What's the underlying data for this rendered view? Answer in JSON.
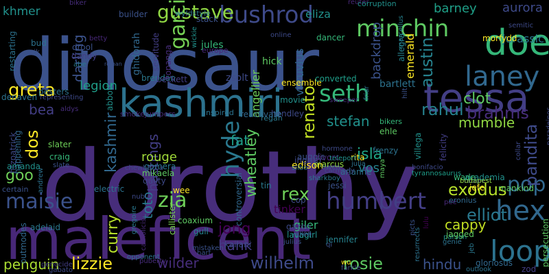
{
  "words": [
    {
      "text": "dorothy",
      "color": "#472d7b",
      "vertical": false
    },
    {
      "text": "dinosaur",
      "color": "#3b528b",
      "vertical": false
    },
    {
      "text": "maleficent",
      "color": "#482878",
      "vertical": false
    },
    {
      "text": "kashmiri",
      "color": "#2c728e",
      "vertical": false
    },
    {
      "text": "tessa",
      "color": "#433e85",
      "vertical": false
    },
    {
      "text": "doe",
      "color": "#35b779",
      "vertical": false
    },
    {
      "text": "laney",
      "color": "#31688e",
      "vertical": false
    },
    {
      "text": "hex",
      "color": "#31688e",
      "vertical": false
    },
    {
      "text": "loop",
      "color": "#2c728e",
      "vertical": false
    },
    {
      "text": "minchin",
      "color": "#5ec962",
      "vertical": false
    },
    {
      "text": "bushrod",
      "color": "#3e4a89",
      "vertical": false
    },
    {
      "text": "gustave",
      "color": "#90d743",
      "vertical": false
    },
    {
      "text": "seth",
      "color": "#35b779",
      "vertical": false
    },
    {
      "text": "greta",
      "color": "#fde725",
      "vertical": false
    },
    {
      "text": "garcia",
      "color": "#75d054",
      "vertical": true
    },
    {
      "text": "maisie",
      "color": "#3b528b",
      "vertical": false
    },
    {
      "text": "humbert",
      "color": "#433e85",
      "vertical": false
    },
    {
      "text": "zia",
      "color": "#6ece58",
      "vertical": false
    },
    {
      "text": "pop",
      "color": "#31688e",
      "vertical": false
    },
    {
      "text": "rex",
      "color": "#6ece58",
      "vertical": false
    },
    {
      "text": "exodus",
      "color": "#b5de2b",
      "vertical": false
    },
    {
      "text": "rahul",
      "color": "#26828e",
      "vertical": false
    },
    {
      "text": "brahms",
      "color": "#472d7b",
      "vertical": false
    },
    {
      "text": "stefan",
      "color": "#21918c",
      "vertical": false
    },
    {
      "text": "isla",
      "color": "#20a486",
      "vertical": false
    },
    {
      "text": "vos",
      "color": "#26828e",
      "vertical": false
    },
    {
      "text": "elliot",
      "color": "#2a788e",
      "vertical": false
    },
    {
      "text": "clot",
      "color": "#5ec962",
      "vertical": false
    },
    {
      "text": "mumble",
      "color": "#90d743",
      "vertical": false
    },
    {
      "text": "hyde",
      "color": "#2a788e",
      "vertical": true
    },
    {
      "text": "wheatley",
      "color": "#5ec962",
      "vertical": true
    },
    {
      "text": "fat",
      "color": "#1f9e89",
      "vertical": false
    },
    {
      "text": "jong",
      "color": "#440154",
      "vertical": false
    },
    {
      "text": "penguin",
      "color": "#aadc32",
      "vertical": false
    },
    {
      "text": "lizzie",
      "color": "#fde725",
      "vertical": false
    },
    {
      "text": "wilder",
      "color": "#472d7b",
      "vertical": false
    },
    {
      "text": "hank",
      "color": "#443983",
      "vertical": false
    },
    {
      "text": "wilhelm",
      "color": "#3e4a89",
      "vertical": false
    },
    {
      "text": "rosie",
      "color": "#5ec962",
      "vertical": false
    },
    {
      "text": "hindu",
      "color": "#3b528b",
      "vertical": false
    },
    {
      "text": "cappy",
      "color": "#c2df23",
      "vertical": false
    },
    {
      "text": "dos",
      "color": "#fde725",
      "vertical": true
    },
    {
      "text": "bea",
      "color": "#433e85",
      "vertical": false
    },
    {
      "text": "goo",
      "color": "#6ece58",
      "vertical": false
    },
    {
      "text": "darling",
      "color": "#3b528b",
      "vertical": true
    },
    {
      "text": "kashmir",
      "color": "#31688e",
      "vertical": true
    },
    {
      "text": "curry",
      "color": "#b5de2b",
      "vertical": true
    },
    {
      "text": "toto",
      "color": "#2a788e",
      "vertical": true
    },
    {
      "text": "hastings",
      "color": "#433e85",
      "vertical": true
    },
    {
      "text": "khmer",
      "color": "#21918c",
      "vertical": false
    },
    {
      "text": "barney",
      "color": "#1fa088",
      "vertical": false
    },
    {
      "text": "aurora",
      "color": "#3e4a89",
      "vertical": false
    },
    {
      "text": "eliza",
      "color": "#21918c",
      "vertical": false
    },
    {
      "text": "jurassic",
      "color": "#2a788e",
      "vertical": false
    },
    {
      "text": "austin",
      "color": "#26828e",
      "vertical": true
    },
    {
      "text": "emerald",
      "color": "#fde725",
      "vertical": true
    },
    {
      "text": "renato",
      "color": "#c2df23",
      "vertical": true
    },
    {
      "text": "pandita",
      "color": "#3e4a89",
      "vertical": true
    },
    {
      "text": "legion",
      "color": "#1f9e89",
      "vertical": false
    },
    {
      "text": "abbott",
      "color": "#21918c",
      "vertical": true
    },
    {
      "text": "angellier",
      "color": "#6ece58",
      "vertical": true
    },
    {
      "text": "backdrop",
      "color": "#3b528b",
      "vertical": true
    },
    {
      "text": "vitruvius",
      "color": "#31688e",
      "vertical": true
    },
    {
      "text": "bartlett",
      "color": "#2c728e",
      "vertical": false
    },
    {
      "text": "rouge",
      "color": "#a0da39",
      "vertical": false
    },
    {
      "text": "gomera",
      "color": "#2a788e",
      "vertical": false
    },
    {
      "text": "mikaela",
      "color": "#5ec962",
      "vertical": false
    },
    {
      "text": "quilty",
      "color": "#3e4a89",
      "vertical": false
    },
    {
      "text": "auggie",
      "color": "#3b528b",
      "vertical": false
    },
    {
      "text": "edison",
      "color": "#fde725",
      "vertical": false
    },
    {
      "text": "marcus",
      "color": "#90d743",
      "vertical": false
    },
    {
      "text": "frenzy",
      "color": "#2c728e",
      "vertical": false
    },
    {
      "text": "ehle",
      "color": "#5ec962",
      "vertical": false
    },
    {
      "text": "bikers",
      "color": "#35b779",
      "vertical": false
    },
    {
      "text": "movie",
      "color": "#21918c",
      "vertical": false
    },
    {
      "text": "hendley",
      "color": "#3e4a89",
      "vertical": false
    },
    {
      "text": "regan",
      "color": "#2a788e",
      "vertical": false
    },
    {
      "text": "reactivate",
      "color": "#31688e",
      "vertical": false
    },
    {
      "text": "inspired",
      "color": "#2c728e",
      "vertical": false
    },
    {
      "text": "smokejumpers",
      "color": "#472d7b",
      "vertical": false
    },
    {
      "text": "brendan",
      "color": "#2a788e",
      "vertical": false
    },
    {
      "text": "zsolt",
      "color": "#3e4a89",
      "vertical": false
    },
    {
      "text": "ensemble",
      "color": "#fde725",
      "vertical": false
    },
    {
      "text": "converted",
      "color": "#1f9e89",
      "vertical": false
    },
    {
      "text": "hick",
      "color": "#5ec962",
      "vertical": false
    },
    {
      "text": "jules",
      "color": "#35b779",
      "vertical": false
    },
    {
      "text": "europe",
      "color": "#482878",
      "vertical": false
    },
    {
      "text": "dancer",
      "color": "#35b779",
      "vertical": false
    },
    {
      "text": "online",
      "color": "#3e4a89",
      "vertical": false
    },
    {
      "text": "stack",
      "color": "#3b528b",
      "vertical": false
    },
    {
      "text": "wyldstyle",
      "color": "#2c728e",
      "vertical": false
    },
    {
      "text": "builder",
      "color": "#3b528b",
      "vertical": false
    },
    {
      "text": "reuter",
      "color": "#482878",
      "vertical": false
    },
    {
      "text": "corruption",
      "color": "#21918c",
      "vertical": false
    },
    {
      "text": "semitic",
      "color": "#3e4a89",
      "vertical": false
    },
    {
      "text": "biker",
      "color": "#472d7b",
      "vertical": false
    },
    {
      "text": "morfydd",
      "color": "#fde725",
      "vertical": false
    },
    {
      "text": "allegra",
      "color": "#26828e",
      "vertical": true
    },
    {
      "text": "marcellus",
      "color": "#26828e",
      "vertical": true
    },
    {
      "text": "bud",
      "color": "#2c728e",
      "vertical": false
    },
    {
      "text": "drool",
      "color": "#3b528b",
      "vertical": false
    },
    {
      "text": "dandy",
      "color": "#433e85",
      "vertical": false
    },
    {
      "text": "abe",
      "color": "#2a788e",
      "vertical": false
    },
    {
      "text": "roman",
      "color": "#3b528b",
      "vertical": false
    },
    {
      "text": "betty",
      "color": "#482878",
      "vertical": false
    },
    {
      "text": "erik",
      "color": "#3b528b",
      "vertical": false
    },
    {
      "text": "restarting",
      "color": "#2c728e",
      "vertical": true
    },
    {
      "text": "ghidorah",
      "color": "#31688e",
      "vertical": true
    },
    {
      "text": "servitude",
      "color": "#433e85",
      "vertical": true
    },
    {
      "text": "topanga",
      "color": "#472d7b",
      "vertical": true
    },
    {
      "text": "beckett",
      "color": "#433e85",
      "vertical": false
    },
    {
      "text": "wickie",
      "color": "#21918c",
      "vertical": true
    },
    {
      "text": "pesters",
      "color": "#2c728e",
      "vertical": false
    },
    {
      "text": "representing",
      "color": "#3e4a89",
      "vertical": false
    },
    {
      "text": "denaven",
      "color": "#2c728e",
      "vertical": false
    },
    {
      "text": "aldys",
      "color": "#472d7b",
      "vertical": false
    },
    {
      "text": "fitzpatrick",
      "color": "#3e4a89",
      "vertical": true
    },
    {
      "text": "happening",
      "color": "#31688e",
      "vertical": true
    },
    {
      "text": "slater",
      "color": "#6ece58",
      "vertical": false
    },
    {
      "text": "craig",
      "color": "#35b779",
      "vertical": false
    },
    {
      "text": "slate",
      "color": "#3b528b",
      "vertical": false
    },
    {
      "text": "amanda",
      "color": "#21918c",
      "vertical": false
    },
    {
      "text": "andrew",
      "color": "#2c728e",
      "vertical": true
    },
    {
      "text": "certain",
      "color": "#3b528b",
      "vertical": false
    },
    {
      "text": "chewbacca",
      "color": "#3e4a89",
      "vertical": false
    },
    {
      "text": "electric",
      "color": "#2c728e",
      "vertical": false
    },
    {
      "text": "wee",
      "color": "#fde725",
      "vertical": false
    },
    {
      "text": "nublar",
      "color": "#3e4a89",
      "vertical": false
    },
    {
      "text": "gregoire",
      "color": "#2a788e",
      "vertical": true
    },
    {
      "text": "catholicism",
      "color": "#482878",
      "vertical": true
    },
    {
      "text": "callister",
      "color": "#7ad151",
      "vertical": true
    },
    {
      "text": "coaxium",
      "color": "#5ec962",
      "vertical": false
    },
    {
      "text": "gull",
      "color": "#26828e",
      "vertical": false
    },
    {
      "text": "kailani",
      "color": "#3e4a89",
      "vertical": false
    },
    {
      "text": "mistaken",
      "color": "#3b528b",
      "vertical": false
    },
    {
      "text": "hart",
      "color": "#3b528b",
      "vertical": false
    },
    {
      "text": "puberty",
      "color": "#472d7b",
      "vertical": false
    },
    {
      "text": "opponent",
      "color": "#2c728e",
      "vertical": false
    },
    {
      "text": "gabato",
      "color": "#3e4a89",
      "vertical": false
    },
    {
      "text": "genocide",
      "color": "#433e85",
      "vertical": false
    },
    {
      "text": "adelaid",
      "color": "#2a788e",
      "vertical": false
    },
    {
      "text": "outmodes",
      "color": "#31688e",
      "vertical": true
    },
    {
      "text": "controversial",
      "color": "#31688e",
      "vertical": true
    },
    {
      "text": "tinker",
      "color": "#440154",
      "vertical": false
    },
    {
      "text": "tin",
      "color": "#2a788e",
      "vertical": false
    },
    {
      "text": "cop",
      "color": "#3e4a89",
      "vertical": false
    },
    {
      "text": "giler",
      "color": "#35b779",
      "vertical": false
    },
    {
      "text": "robot",
      "color": "#2c728e",
      "vertical": false
    },
    {
      "text": "gazoo",
      "color": "#3e4a89",
      "vertical": false
    },
    {
      "text": "lavagirl",
      "color": "#21918c",
      "vertical": false
    },
    {
      "text": "julius",
      "color": "#3b528b",
      "vertical": false
    },
    {
      "text": "allen",
      "color": "#3e4a89",
      "vertical": false
    },
    {
      "text": "jennifer",
      "color": "#26828e",
      "vertical": false
    },
    {
      "text": "qi",
      "color": "#3b528b",
      "vertical": false
    },
    {
      "text": "wu",
      "color": "#fde725",
      "vertical": false
    },
    {
      "text": "farkle",
      "color": "#3e4a89",
      "vertical": false
    },
    {
      "text": "resurrects",
      "color": "#2c728e",
      "vertical": true
    },
    {
      "text": "lulu",
      "color": "#440154",
      "vertical": true
    },
    {
      "text": "picts",
      "color": "#3b528b",
      "vertical": true
    },
    {
      "text": "genie",
      "color": "#2c728e",
      "vertical": false
    },
    {
      "text": "jeb",
      "color": "#2a788e",
      "vertical": true
    },
    {
      "text": "parson",
      "color": "#21918c",
      "vertical": false
    },
    {
      "text": "jagged",
      "color": "#5ec962",
      "vertical": false
    },
    {
      "text": "gloriosus",
      "color": "#31688e",
      "vertical": false
    },
    {
      "text": "outlook",
      "color": "#2c728e",
      "vertical": false
    },
    {
      "text": "persecution",
      "color": "#5ec962",
      "vertical": true
    },
    {
      "text": "zod",
      "color": "#433e85",
      "vertical": false
    },
    {
      "text": "mankind",
      "color": "#5ec962",
      "vertical": false
    },
    {
      "text": "ration",
      "color": "#3e4a89",
      "vertical": false
    },
    {
      "text": "academia",
      "color": "#21918c",
      "vertical": false
    },
    {
      "text": "jefe",
      "color": "#fde725",
      "vertical": false
    },
    {
      "text": "pee",
      "color": "#482878",
      "vertical": false
    },
    {
      "text": "eronius",
      "color": "#31688e",
      "vertical": false
    },
    {
      "text": "wade",
      "color": "#35b779",
      "vertical": false
    },
    {
      "text": "budapest",
      "color": "#90d743",
      "vertical": false
    },
    {
      "text": "villega",
      "color": "#21918c",
      "vertical": true
    },
    {
      "text": "felicity",
      "color": "#433e85",
      "vertical": true
    },
    {
      "text": "collar",
      "color": "#3e4a89",
      "vertical": true
    },
    {
      "text": "bonifacio",
      "color": "#3e4a89",
      "vertical": false
    },
    {
      "text": "tyrannosaurus",
      "color": "#1f9e89",
      "vertical": false
    },
    {
      "text": "maya",
      "color": "#5ec962",
      "vertical": true
    },
    {
      "text": "arianne",
      "color": "#2c728e",
      "vertical": false
    },
    {
      "text": "rita",
      "color": "#fde725",
      "vertical": false
    },
    {
      "text": "julia",
      "color": "#2c728e",
      "vertical": false
    },
    {
      "text": "jessi",
      "color": "#3b528b",
      "vertical": false
    },
    {
      "text": "sharkboy",
      "color": "#2a788e",
      "vertical": false
    },
    {
      "text": "carmody",
      "color": "#3e4a89",
      "vertical": false
    },
    {
      "text": "owen",
      "color": "#3b528b",
      "vertical": false
    },
    {
      "text": "ingrith",
      "color": "#3e4a89",
      "vertical": false
    },
    {
      "text": "silbo",
      "color": "#2c728e",
      "vertical": false
    },
    {
      "text": "divorc",
      "color": "#482878",
      "vertical": false
    },
    {
      "text": "hormone",
      "color": "#3e4a89",
      "vertical": false
    },
    {
      "text": "teleport",
      "color": "#21918c",
      "vertical": false
    },
    {
      "text": "sweeper",
      "color": "#472d7b",
      "vertical": false
    },
    {
      "text": "friar",
      "color": "#2c728e",
      "vertical": true
    },
    {
      "text": "hilt",
      "color": "#3b528b",
      "vertical": true
    },
    {
      "text": "paradeinos",
      "color": "#3e4a89",
      "vertical": true
    }
  ]
}
